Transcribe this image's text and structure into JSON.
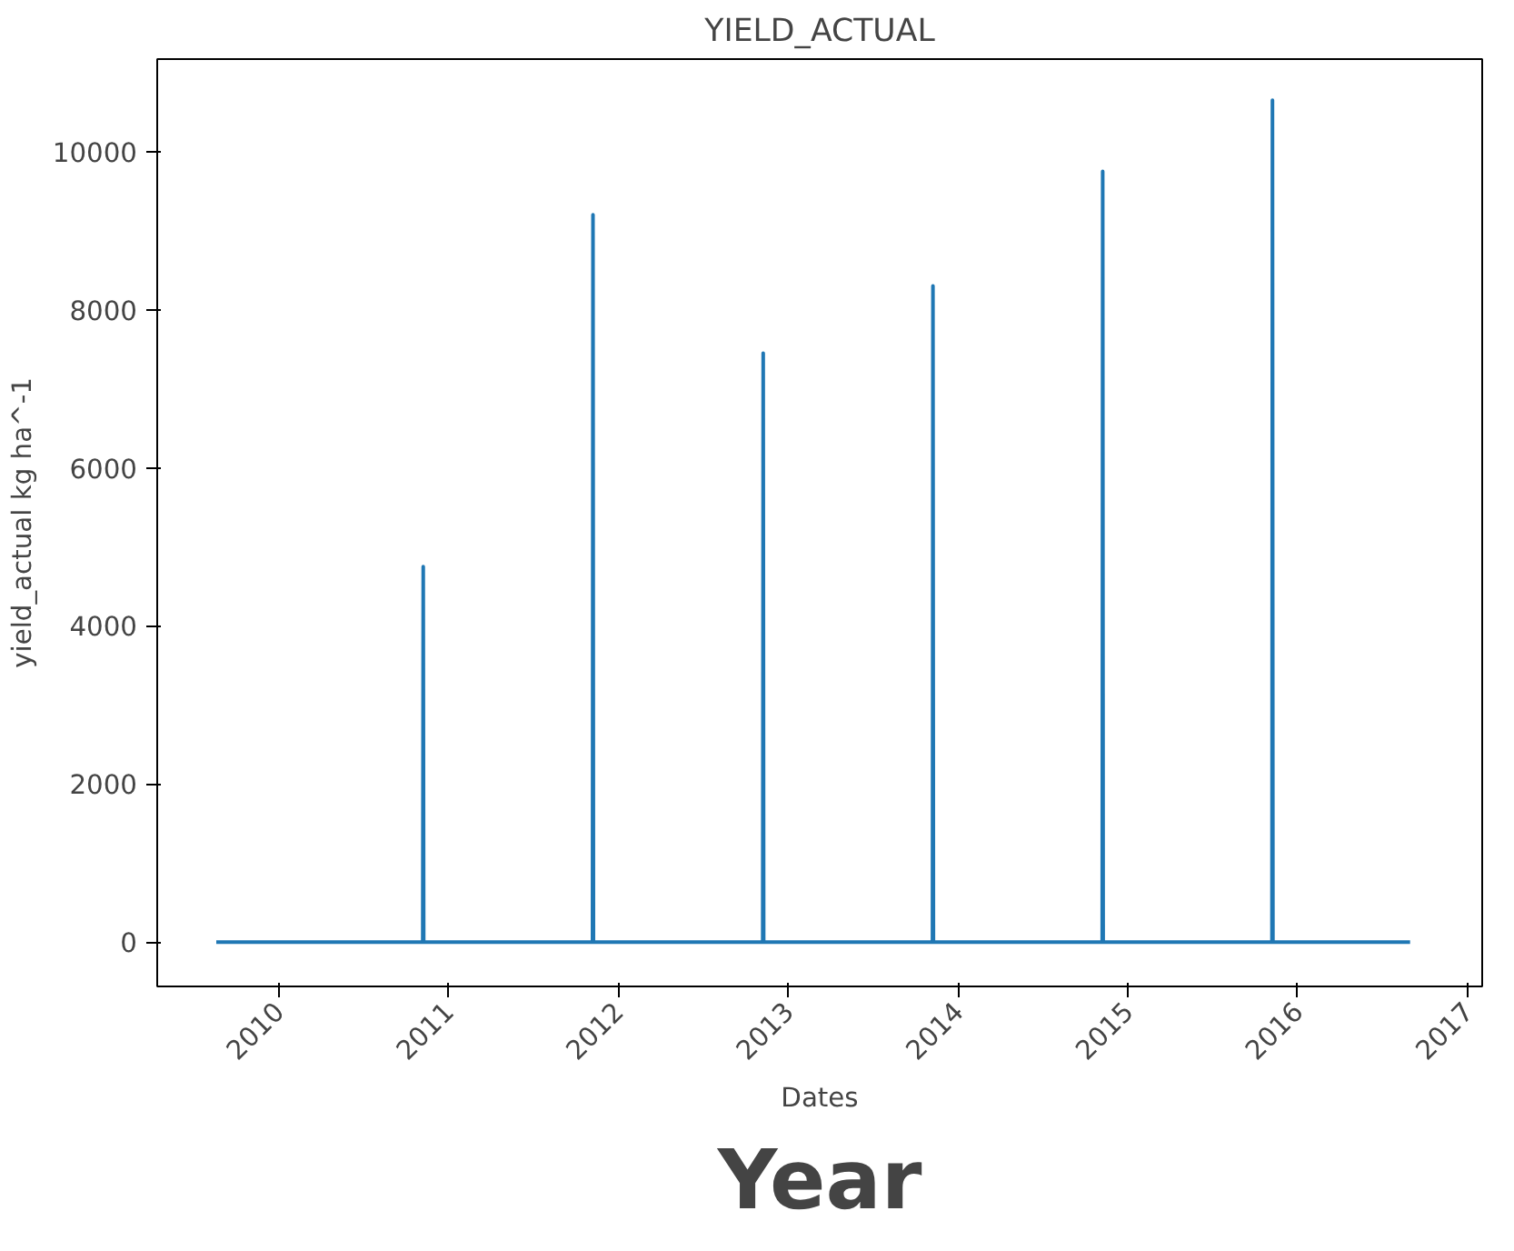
{
  "chart_data": {
    "type": "line",
    "title": "YIELD_ACTUAL",
    "xlabel": "Dates",
    "ylabel": "yield_actual kg ha^-1",
    "annotations": [
      "Year"
    ],
    "series": [
      {
        "color": "#1f77b4",
        "x": [
          "2009-08-20",
          "2010-11-07",
          "2010-11-08",
          "2010-11-09",
          "2011-11-07",
          "2011-11-08",
          "2011-11-09",
          "2012-11-07",
          "2012-11-08",
          "2012-11-09",
          "2013-11-07",
          "2013-11-08",
          "2013-11-09",
          "2014-11-07",
          "2014-11-08",
          "2014-11-09",
          "2015-11-07",
          "2015-11-08",
          "2015-11-09",
          "2016-08-30"
        ],
        "values": [
          0,
          0,
          4750,
          0,
          0,
          9200,
          0,
          0,
          7450,
          0,
          0,
          8300,
          0,
          0,
          9750,
          0,
          0,
          10650,
          0,
          0
        ]
      }
    ],
    "xlim": [
      "2009-04-15",
      "2017-02-01"
    ],
    "xticks": [
      "2010",
      "2011",
      "2012",
      "2013",
      "2014",
      "2015",
      "2016",
      "2017"
    ],
    "ylim": [
      -560,
      11170
    ],
    "yticks": [
      0,
      2000,
      4000,
      6000,
      8000,
      10000
    ],
    "grid": false,
    "marker": "none",
    "line_style": "solid"
  }
}
